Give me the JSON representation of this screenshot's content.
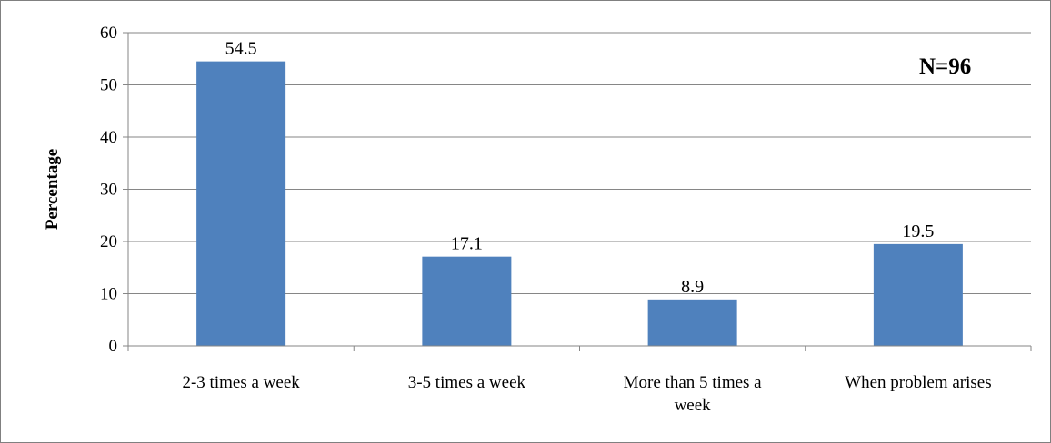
{
  "chart_data": {
    "type": "bar",
    "categories": [
      [
        "2-3 times a week"
      ],
      [
        "3-5 times a week"
      ],
      [
        "More than 5 times a",
        "week"
      ],
      [
        "When problem arises"
      ]
    ],
    "values": [
      54.5,
      17.1,
      8.9,
      19.5
    ],
    "data_labels": [
      "54.5",
      "17.1",
      "8.9",
      "19.5"
    ],
    "title": "",
    "xlabel": "",
    "ylabel": "Percentage",
    "ylim": [
      0,
      60
    ],
    "yticks": [
      0,
      10,
      20,
      30,
      40,
      50,
      60
    ],
    "grid": true,
    "annotation": "N=96",
    "bar_color": "#4F81BD",
    "grid_color": "#868686"
  }
}
